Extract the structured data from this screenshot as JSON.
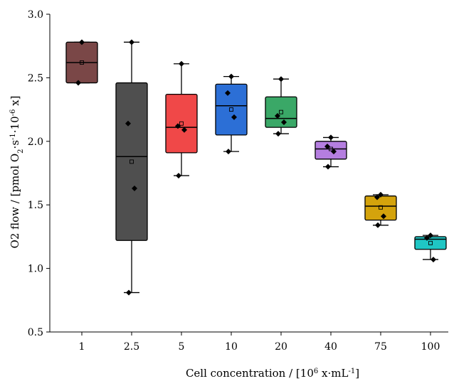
{
  "chart_data": {
    "type": "box",
    "xlabel_main": "Cell concentration / [10",
    "xlabel_sup1": "6",
    "xlabel_mid": " x·mL",
    "xlabel_sup2": "-1",
    "xlabel_end": "]",
    "ylabel_main": "O2 flow / [pmol O",
    "ylabel_sub1": "2",
    "ylabel_mid1": "·s",
    "ylabel_sup1": "-1",
    "ylabel_mid2": "·10",
    "ylabel_sup2": "-6",
    "ylabel_end": " x]",
    "ylim": [
      0.5,
      3.0
    ],
    "yticks": [
      0.5,
      1.0,
      1.5,
      2.0,
      2.5,
      3.0
    ],
    "ytick_labels": [
      "0.5",
      "1.0",
      "1.5",
      "2.0",
      "2.5",
      "3.0"
    ],
    "categories": [
      "1",
      "2.5",
      "5",
      "10",
      "20",
      "40",
      "75",
      "100"
    ],
    "boxes": [
      {
        "q1": 2.46,
        "median": 2.62,
        "q3": 2.78,
        "whisker_low": 2.46,
        "whisker_high": 2.78,
        "mean": 2.62,
        "points": [
          2.78,
          2.46
        ],
        "color": "#7a4747"
      },
      {
        "q1": 1.22,
        "median": 1.88,
        "q3": 2.46,
        "whisker_low": 0.81,
        "whisker_high": 2.78,
        "mean": 1.84,
        "points": [
          2.78,
          2.14,
          1.63,
          0.81
        ],
        "color": "#4f4f4f"
      },
      {
        "q1": 1.91,
        "median": 2.11,
        "q3": 2.37,
        "whisker_low": 1.73,
        "whisker_high": 2.61,
        "mean": 2.14,
        "points": [
          2.61,
          2.12,
          2.09,
          1.73
        ],
        "color": "#f04848"
      },
      {
        "q1": 2.05,
        "median": 2.28,
        "q3": 2.45,
        "whisker_low": 1.92,
        "whisker_high": 2.51,
        "mean": 2.25,
        "points": [
          2.51,
          2.38,
          2.19,
          1.92
        ],
        "color": "#2c6fd6"
      },
      {
        "q1": 2.11,
        "median": 2.18,
        "q3": 2.35,
        "whisker_low": 2.06,
        "whisker_high": 2.49,
        "mean": 2.23,
        "points": [
          2.49,
          2.2,
          2.15,
          2.06
        ],
        "color": "#3aa867"
      },
      {
        "q1": 1.86,
        "median": 1.94,
        "q3": 2.0,
        "whisker_low": 1.8,
        "whisker_high": 2.03,
        "mean": 1.94,
        "points": [
          2.03,
          1.96,
          1.92,
          1.8
        ],
        "color": "#b57ee0"
      },
      {
        "q1": 1.38,
        "median": 1.49,
        "q3": 1.57,
        "whisker_low": 1.34,
        "whisker_high": 1.58,
        "mean": 1.48,
        "points": [
          1.58,
          1.56,
          1.41,
          1.34
        ],
        "color": "#d4a30c"
      },
      {
        "q1": 1.15,
        "median": 1.23,
        "q3": 1.25,
        "whisker_low": 1.07,
        "whisker_high": 1.26,
        "mean": 1.2,
        "points": [
          1.26,
          1.24,
          1.07
        ],
        "color": "#1fc6c4"
      }
    ]
  }
}
